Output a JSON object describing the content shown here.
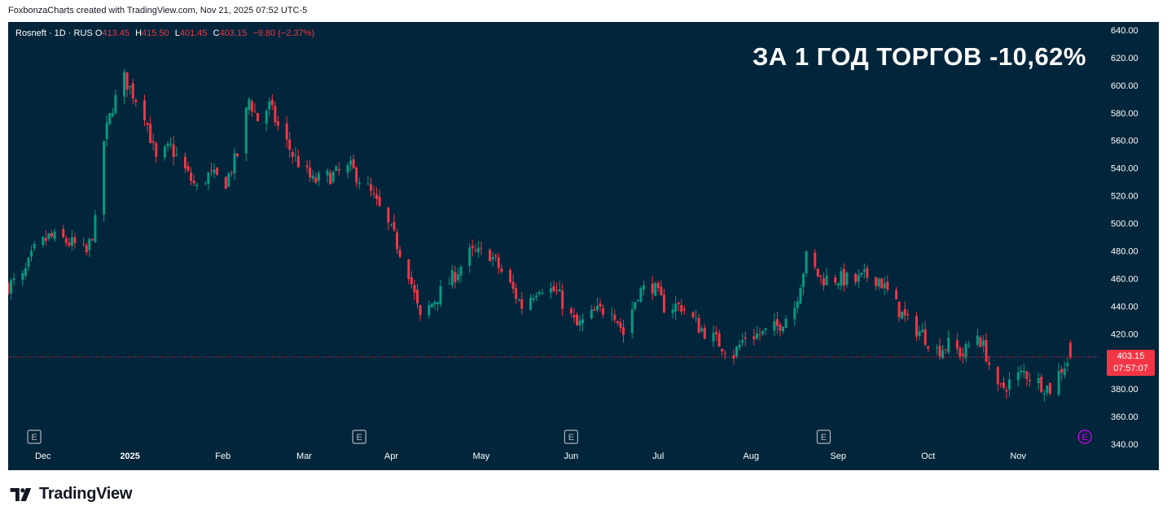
{
  "attribution": "FoxbonzaCharts created with TradingView.com, Nov 21, 2025 07:52 UTC-5",
  "legend": {
    "symbol": "Rosneft · 1D · RUS",
    "open_label": "O",
    "open": "413.45",
    "high_label": "H",
    "high": "415.50",
    "low_label": "L",
    "low": "401.45",
    "close_label": "C",
    "close": "403.15",
    "change": "−9.80 (−2.37%)"
  },
  "headline": "ЗА 1 ГОД ТОРГОВ -10,62%",
  "price_tag": {
    "price": "403.15",
    "countdown": "07:57:07"
  },
  "footer": {
    "brand": "TradingView"
  },
  "colors": {
    "background": "#01253a",
    "up": "#089981",
    "down": "#f23645",
    "axis_text": "#ffffff",
    "earnings_marker": "#b2b5be",
    "upcoming_earnings_marker": "#d500f9"
  },
  "earnings_markers": [
    {
      "icon": "earnings-icon",
      "label": "E",
      "date": "2024-11-29"
    },
    {
      "icon": "earnings-icon",
      "label": "E",
      "date": "2025-03-21"
    },
    {
      "icon": "earnings-icon",
      "label": "E",
      "date": "2025-06-02"
    },
    {
      "icon": "earnings-icon",
      "label": "E",
      "date": "2025-08-28"
    },
    {
      "icon": "upcoming-earnings-icon",
      "label": "E",
      "date": "2025-11-26"
    }
  ],
  "chart_data": {
    "type": "candlestick",
    "interval": "1D",
    "x_tick_labels": [
      "Dec",
      "2025",
      "Feb",
      "Mar",
      "Apr",
      "May",
      "Jun",
      "Jul",
      "Aug",
      "Sep",
      "Oct",
      "Nov"
    ],
    "y_tick_labels": [
      "640.00",
      "620.00",
      "600.00",
      "580.00",
      "560.00",
      "540.00",
      "520.00",
      "500.00",
      "480.00",
      "460.00",
      "440.00",
      "420.00",
      "400.00",
      "380.00",
      "360.00",
      "340.00"
    ],
    "ylim": [
      340,
      640
    ],
    "xlim": [
      "2024-11-20",
      "2025-12-01"
    ],
    "grid": false,
    "last_price_line": 403.15,
    "anchors": [
      [
        "2024-11-20",
        455
      ],
      [
        "2024-11-25",
        460
      ],
      [
        "2024-11-29",
        480
      ],
      [
        "2024-12-04",
        490
      ],
      [
        "2024-12-09",
        488
      ],
      [
        "2024-12-13",
        484
      ],
      [
        "2024-12-17",
        478
      ],
      [
        "2024-12-20",
        500
      ],
      [
        "2024-12-23",
        560
      ],
      [
        "2024-12-26",
        585
      ],
      [
        "2024-12-30",
        605
      ],
      [
        "2025-01-06",
        580
      ],
      [
        "2025-01-10",
        545
      ],
      [
        "2025-01-15",
        555
      ],
      [
        "2025-01-20",
        538
      ],
      [
        "2025-01-24",
        525
      ],
      [
        "2025-01-28",
        535
      ],
      [
        "2025-02-03",
        530
      ],
      [
        "2025-02-07",
        550
      ],
      [
        "2025-02-11",
        590
      ],
      [
        "2025-02-14",
        575
      ],
      [
        "2025-02-18",
        585
      ],
      [
        "2025-02-21",
        570
      ],
      [
        "2025-02-26",
        550
      ],
      [
        "2025-03-05",
        530
      ],
      [
        "2025-03-12",
        535
      ],
      [
        "2025-03-18",
        540
      ],
      [
        "2025-03-24",
        525
      ],
      [
        "2025-03-28",
        510
      ],
      [
        "2025-04-02",
        490
      ],
      [
        "2025-04-07",
        465
      ],
      [
        "2025-04-11",
        430
      ],
      [
        "2025-04-16",
        445
      ],
      [
        "2025-04-22",
        460
      ],
      [
        "2025-04-28",
        478
      ],
      [
        "2025-05-05",
        478
      ],
      [
        "2025-05-12",
        455
      ],
      [
        "2025-05-16",
        440
      ],
      [
        "2025-05-22",
        455
      ],
      [
        "2025-05-28",
        450
      ],
      [
        "2025-06-04",
        425
      ],
      [
        "2025-06-10",
        435
      ],
      [
        "2025-06-16",
        440
      ],
      [
        "2025-06-20",
        420
      ],
      [
        "2025-06-25",
        450
      ],
      [
        "2025-06-30",
        455
      ],
      [
        "2025-07-04",
        440
      ],
      [
        "2025-07-10",
        440
      ],
      [
        "2025-07-16",
        425
      ],
      [
        "2025-07-22",
        415
      ],
      [
        "2025-07-28",
        405
      ],
      [
        "2025-08-01",
        418
      ],
      [
        "2025-08-07",
        420
      ],
      [
        "2025-08-12",
        425
      ],
      [
        "2025-08-18",
        440
      ],
      [
        "2025-08-22",
        475
      ],
      [
        "2025-08-27",
        460
      ],
      [
        "2025-09-02",
        460
      ],
      [
        "2025-09-08",
        458
      ],
      [
        "2025-09-12",
        462
      ],
      [
        "2025-09-16",
        460
      ],
      [
        "2025-09-22",
        440
      ],
      [
        "2025-09-26",
        428
      ],
      [
        "2025-10-01",
        420
      ],
      [
        "2025-10-06",
        408
      ],
      [
        "2025-10-10",
        412
      ],
      [
        "2025-10-15",
        405
      ],
      [
        "2025-10-20",
        420
      ],
      [
        "2025-10-23",
        405
      ],
      [
        "2025-10-27",
        378
      ],
      [
        "2025-10-31",
        385
      ],
      [
        "2025-11-05",
        392
      ],
      [
        "2025-11-10",
        385
      ],
      [
        "2025-11-14",
        380
      ],
      [
        "2025-11-18",
        395
      ],
      [
        "2025-11-21",
        403.15
      ]
    ],
    "last_candle": {
      "date": "2025-11-21",
      "open": 413.45,
      "high": 415.5,
      "low": 401.45,
      "close": 403.15
    }
  }
}
